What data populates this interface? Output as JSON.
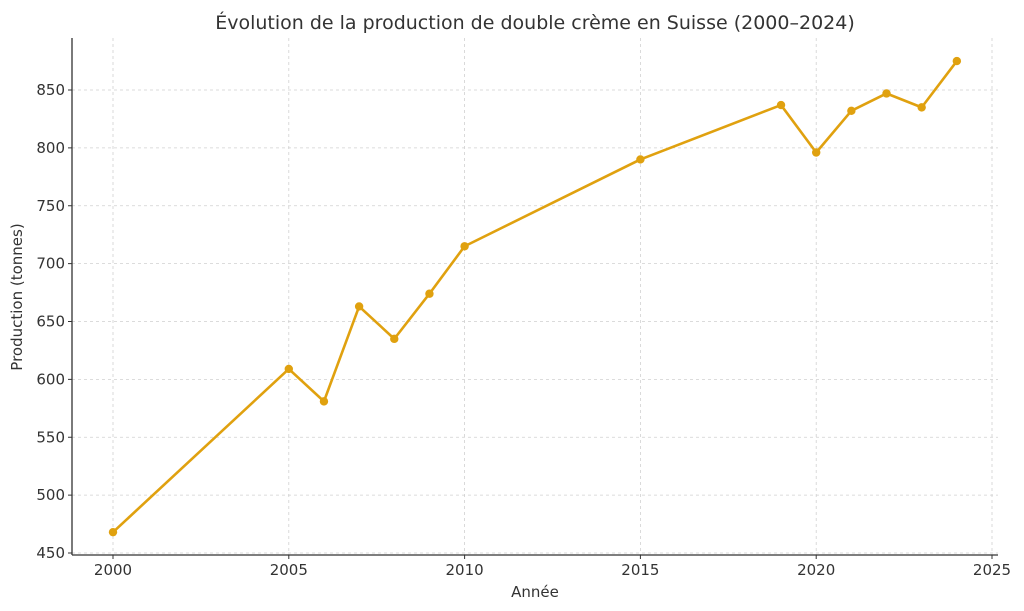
{
  "chart_data": {
    "type": "line",
    "title": "Évolution de la production de double crème en Suisse (2000–2024)",
    "xlabel": "Année",
    "ylabel": "Production (tonnes)",
    "x": [
      2000,
      2005,
      2006,
      2007,
      2008,
      2009,
      2010,
      2015,
      2019,
      2020,
      2021,
      2022,
      2023,
      2024
    ],
    "series": [
      {
        "name": "Production",
        "color": "#E0A10F",
        "values": [
          468,
          609,
          581,
          663,
          635,
          674,
          715,
          790,
          837,
          796,
          832,
          847,
          835,
          875
        ]
      }
    ],
    "xlim": [
      1999,
      2025.2
    ],
    "ylim": [
      449,
      893
    ],
    "xticks": [
      2000,
      2005,
      2010,
      2015,
      2020,
      2025
    ],
    "yticks": [
      450,
      500,
      550,
      600,
      650,
      700,
      750,
      800,
      850
    ],
    "grid": true,
    "legend": null
  }
}
